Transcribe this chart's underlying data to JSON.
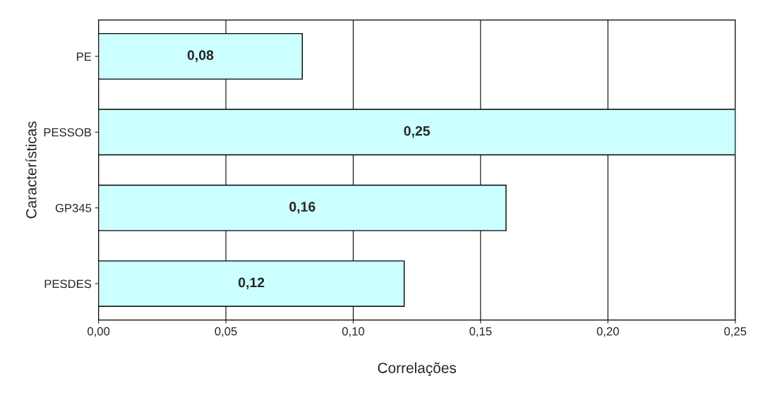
{
  "chart_data": {
    "type": "bar",
    "orientation": "horizontal",
    "categories": [
      "PE",
      "PESSOB",
      "GP345",
      "PESDES"
    ],
    "values": [
      0.08,
      0.25,
      0.16,
      0.12
    ],
    "value_labels": [
      "0,08",
      "0,25",
      "0,16",
      "0,12"
    ],
    "color": "#ccffff",
    "xlabel": "Correlações",
    "ylabel": "Características",
    "xlim": [
      0,
      0.25
    ],
    "xticks": [
      {
        "value": 0,
        "label": "0,00"
      },
      {
        "value": 0.05,
        "label": "0,05"
      },
      {
        "value": 0.1,
        "label": "0,10"
      },
      {
        "value": 0.15,
        "label": "0,15"
      },
      {
        "value": 0.2,
        "label": "0,20"
      },
      {
        "value": 0.25,
        "label": "0,25"
      }
    ],
    "grid": "x",
    "legend": false
  }
}
